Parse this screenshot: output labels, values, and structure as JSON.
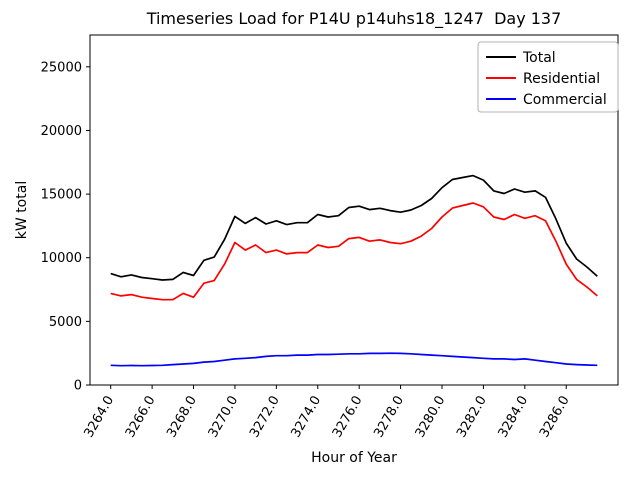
{
  "chart_data": {
    "type": "line",
    "title": "Timeseries Load for P14U p14uhs18_1247  Day 137",
    "xlabel": "Hour of Year",
    "ylabel": "kW total",
    "grid": false,
    "legend_position": "upper right",
    "xlim": [
      3263.0,
      3288.5
    ],
    "ylim": [
      0,
      27500
    ],
    "x_ticks": [
      3264,
      3266,
      3268,
      3270,
      3272,
      3274,
      3276,
      3278,
      3280,
      3282,
      3284,
      3286
    ],
    "x_tick_labels": [
      "3264.0",
      "3266.0",
      "3268.0",
      "3270.0",
      "3272.0",
      "3274.0",
      "3276.0",
      "3278.0",
      "3280.0",
      "3282.0",
      "3284.0",
      "3286.0"
    ],
    "y_ticks": [
      0,
      5000,
      10000,
      15000,
      20000,
      25000
    ],
    "y_tick_labels": [
      "0",
      "5000",
      "10000",
      "15000",
      "20000",
      "25000"
    ],
    "x": [
      3264.0,
      3264.5,
      3265.0,
      3265.5,
      3266.0,
      3266.5,
      3267.0,
      3267.5,
      3268.0,
      3268.5,
      3269.0,
      3269.5,
      3270.0,
      3270.5,
      3271.0,
      3271.5,
      3272.0,
      3272.5,
      3273.0,
      3273.5,
      3274.0,
      3274.5,
      3275.0,
      3275.5,
      3276.0,
      3276.5,
      3277.0,
      3277.5,
      3278.0,
      3278.5,
      3279.0,
      3279.5,
      3280.0,
      3280.5,
      3281.0,
      3281.5,
      3282.0,
      3282.5,
      3283.0,
      3283.5,
      3284.0,
      3284.5,
      3285.0,
      3285.5,
      3286.0,
      3286.5,
      3287.0,
      3287.5
    ],
    "series": [
      {
        "name": "Total",
        "color": "#000000",
        "values": [
          8750,
          8500,
          8650,
          8450,
          8350,
          8250,
          8300,
          8850,
          8600,
          9800,
          10050,
          11450,
          13250,
          12700,
          13150,
          12650,
          12900,
          12600,
          12750,
          12750,
          13400,
          13200,
          13300,
          13950,
          14050,
          13780,
          13880,
          13700,
          13580,
          13750,
          14100,
          14650,
          15500,
          16150,
          16300,
          16450,
          16100,
          15250,
          15050,
          15400,
          15150,
          15250,
          14750,
          13050,
          11150,
          9900,
          9270,
          8550
        ]
      },
      {
        "name": "Residential",
        "color": "#ff0000",
        "values": [
          7200,
          7000,
          7100,
          6900,
          6800,
          6700,
          6700,
          7200,
          6900,
          8000,
          8200,
          9500,
          11200,
          10600,
          11000,
          10400,
          10600,
          10300,
          10400,
          10400,
          11000,
          10800,
          10900,
          11500,
          11600,
          11300,
          11400,
          11200,
          11100,
          11300,
          11700,
          12300,
          13200,
          13900,
          14100,
          14300,
          14000,
          13200,
          13000,
          13400,
          13100,
          13300,
          12900,
          11300,
          9500,
          8300,
          7700,
          7000
        ]
      },
      {
        "name": "Commercial",
        "color": "#0000ff",
        "values": [
          1550,
          1520,
          1530,
          1520,
          1530,
          1550,
          1600,
          1650,
          1700,
          1800,
          1850,
          1950,
          2050,
          2100,
          2150,
          2250,
          2300,
          2300,
          2350,
          2350,
          2400,
          2400,
          2420,
          2450,
          2450,
          2480,
          2480,
          2500,
          2480,
          2450,
          2400,
          2350,
          2300,
          2250,
          2200,
          2150,
          2100,
          2050,
          2050,
          2000,
          2050,
          1950,
          1850,
          1750,
          1650,
          1600,
          1570,
          1550
        ]
      }
    ]
  }
}
